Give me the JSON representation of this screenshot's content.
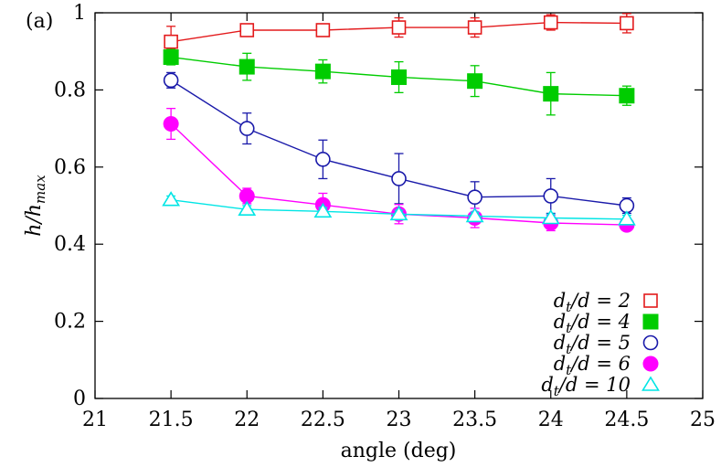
{
  "chart_data": {
    "type": "line",
    "panel_label": "(a)",
    "xlabel": "angle (deg)",
    "ylabel_main": "h/h",
    "ylabel_sub": "max",
    "xlim": [
      21,
      25
    ],
    "ylim": [
      0,
      1
    ],
    "xticks": [
      21,
      21.5,
      22,
      22.5,
      23,
      23.5,
      24,
      24.5,
      25
    ],
    "xtick_labels": [
      "21",
      "21.5",
      "22",
      "22.5",
      "23",
      "23.5",
      "24",
      "24.5",
      "25"
    ],
    "yticks": [
      0,
      0.2,
      0.4,
      0.6,
      0.8,
      1
    ],
    "ytick_labels": [
      "0",
      "0.2",
      "0.4",
      "0.6",
      "0.8",
      "1"
    ],
    "grid": false,
    "legend_position": "bottom-right",
    "x": [
      21.5,
      22,
      22.5,
      23,
      23.5,
      24,
      24.5
    ],
    "series": [
      {
        "label_prefix": "d",
        "label_sub": "t",
        "label_suffix": "/d = 2",
        "color": "#e31a1c",
        "marker": "open-square",
        "values": [
          0.925,
          0.955,
          0.955,
          0.962,
          0.962,
          0.975,
          0.973
        ],
        "errors": [
          0.04,
          0.015,
          0.015,
          0.025,
          0.025,
          0.02,
          0.025
        ]
      },
      {
        "label_prefix": "d",
        "label_sub": "t",
        "label_suffix": "/d = 4",
        "color": "#00cc00",
        "marker": "filled-square",
        "values": [
          0.885,
          0.86,
          0.848,
          0.833,
          0.823,
          0.79,
          0.785
        ],
        "errors": [
          0.02,
          0.035,
          0.03,
          0.04,
          0.04,
          0.055,
          0.025
        ]
      },
      {
        "label_prefix": "d",
        "label_sub": "t",
        "label_suffix": "/d = 5",
        "color": "#1a1aaa",
        "marker": "open-circle",
        "values": [
          0.825,
          0.7,
          0.62,
          0.57,
          0.522,
          0.525,
          0.5
        ],
        "errors": [
          0.02,
          0.04,
          0.05,
          0.065,
          0.04,
          0.045,
          0.02
        ]
      },
      {
        "label_prefix": "d",
        "label_sub": "t",
        "label_suffix": "/d = 6",
        "color": "#ff00ff",
        "marker": "filled-circle",
        "values": [
          0.712,
          0.525,
          0.502,
          0.478,
          0.468,
          0.455,
          0.45
        ],
        "errors": [
          0.04,
          0.02,
          0.03,
          0.025,
          0.025,
          0.02,
          0.015
        ]
      },
      {
        "label_prefix": "d",
        "label_sub": "t",
        "label_suffix": "/d = 10",
        "color": "#00e5e5",
        "marker": "open-triangle",
        "values": [
          0.515,
          0.49,
          0.485,
          0.478,
          0.473,
          0.468,
          0.465
        ],
        "errors": [
          0.01,
          0.01,
          0.01,
          0.01,
          0.01,
          0.01,
          0.01
        ]
      }
    ]
  }
}
